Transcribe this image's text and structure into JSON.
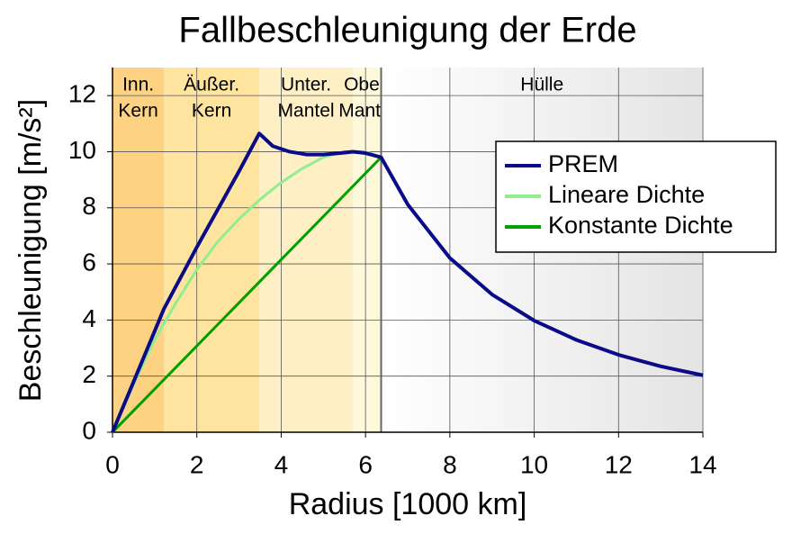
{
  "chart_data": {
    "type": "line",
    "title": "Fallbeschleunigung der Erde",
    "xlabel": "Radius [1000 km]",
    "ylabel": "Beschleunigung [m/s²]",
    "xlim": [
      0,
      14
    ],
    "ylim": [
      0,
      13
    ],
    "xticks": [
      0,
      2,
      4,
      6,
      8,
      10,
      12,
      14
    ],
    "yticks": [
      0,
      2,
      4,
      6,
      8,
      10,
      12
    ],
    "grid": true,
    "legend": "upper right",
    "layers": [
      {
        "label": [
          "Inn.",
          "Kern"
        ],
        "from": 0,
        "to": 1.22,
        "color": "#fdd283"
      },
      {
        "label": [
          "Äußer.",
          "Kern"
        ],
        "from": 1.22,
        "to": 3.48,
        "color": "#fee49e"
      },
      {
        "label": [
          "Unter.",
          "Mantel"
        ],
        "from": 3.48,
        "to": 5.7,
        "color": "#fef0c4"
      },
      {
        "label": [
          "Ober.",
          "Mantel"
        ],
        "from": 5.7,
        "to": 6.37,
        "color": "#fff9dc"
      },
      {
        "label": [
          "Hülle"
        ],
        "from": 6.37,
        "to": 14,
        "color": [
          "#ffffff",
          "#e4e4e4"
        ]
      }
    ],
    "series": [
      {
        "name": "PREM",
        "color": "#0b0b8a",
        "x": [
          0,
          0.5,
          1.22,
          2,
          3,
          3.48,
          3.8,
          4.2,
          4.6,
          5.0,
          5.4,
          5.7,
          6.0,
          6.37,
          7,
          8,
          9,
          10,
          11,
          12,
          13,
          14
        ],
        "values": [
          0,
          1.8,
          4.4,
          6.6,
          9.3,
          10.65,
          10.2,
          10.0,
          9.9,
          9.9,
          9.95,
          10.0,
          9.95,
          9.8,
          8.12,
          6.21,
          4.91,
          3.98,
          3.29,
          2.76,
          2.35,
          2.03
        ]
      },
      {
        "name": "Lineare Dichte",
        "color": "#90ee90",
        "x": [
          0,
          0.5,
          1,
          1.5,
          2,
          2.5,
          3,
          3.5,
          4,
          4.5,
          5,
          5.5,
          6,
          6.37
        ],
        "values": [
          0,
          1.7,
          3.3,
          4.6,
          5.8,
          6.8,
          7.6,
          8.3,
          8.9,
          9.4,
          9.8,
          10.0,
          10.0,
          9.8
        ]
      },
      {
        "name": "Konstante Dichte",
        "color": "#00a000",
        "x": [
          0,
          6.37
        ],
        "values": [
          0,
          9.8
        ]
      }
    ]
  }
}
